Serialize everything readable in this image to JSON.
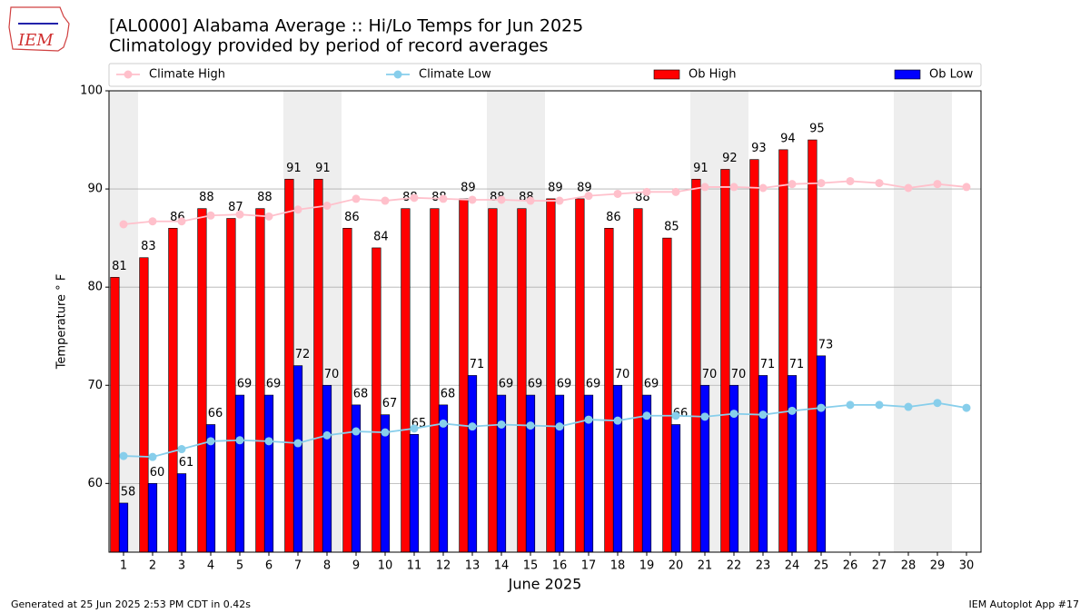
{
  "logo_text": "IEM",
  "footer_left": "Generated at 25 Jun 2025 2:53 PM CDT in 0.42s",
  "footer_right": "IEM Autoplot App #17",
  "chart_data": {
    "type": "bar",
    "title": "[AL0000] Alabama Average :: Hi/Lo Temps for Jun 2025",
    "subtitle": "Climatology provided by period of record averages",
    "x_label": "June 2025",
    "y_label": "Temperature ° F",
    "x": [
      1,
      2,
      3,
      4,
      5,
      6,
      7,
      8,
      9,
      10,
      11,
      12,
      13,
      14,
      15,
      16,
      17,
      18,
      19,
      20,
      21,
      22,
      23,
      24,
      25,
      26,
      27,
      28,
      29,
      30
    ],
    "xlim": [
      0.5,
      30.5
    ],
    "xticks": [
      1,
      2,
      3,
      4,
      5,
      6,
      7,
      8,
      9,
      10,
      11,
      12,
      13,
      14,
      15,
      16,
      17,
      18,
      19,
      20,
      21,
      22,
      23,
      24,
      25,
      26,
      27,
      28,
      29,
      30
    ],
    "ylim": [
      53,
      100
    ],
    "yticks": [
      60,
      70,
      80,
      90,
      100
    ],
    "grid": true,
    "highlight_days": [
      1,
      7,
      8,
      14,
      15,
      21,
      22,
      28,
      29
    ],
    "series": [
      {
        "name": "Climate High",
        "type": "line",
        "color": "#ffc0cb",
        "values": [
          86.4,
          86.7,
          86.7,
          87.3,
          87.4,
          87.2,
          87.9,
          88.3,
          89.0,
          88.8,
          89.1,
          89.0,
          88.9,
          88.9,
          88.8,
          88.8,
          89.3,
          89.5,
          89.7,
          89.7,
          90.2,
          90.2,
          90.1,
          90.5,
          90.6,
          90.8,
          90.6,
          90.1,
          90.5,
          90.2
        ]
      },
      {
        "name": "Climate Low",
        "type": "line",
        "color": "#87ceeb",
        "values": [
          62.8,
          62.7,
          63.5,
          64.3,
          64.4,
          64.3,
          64.1,
          64.9,
          65.3,
          65.2,
          65.6,
          66.1,
          65.8,
          66.0,
          65.9,
          65.8,
          66.5,
          66.4,
          66.9,
          66.9,
          66.8,
          67.1,
          67.0,
          67.4,
          67.7,
          68.0,
          68.0,
          67.8,
          68.2,
          67.7
        ]
      },
      {
        "name": "Ob High",
        "type": "bar",
        "color": "#ff0000",
        "values": [
          81,
          83,
          86,
          88,
          87,
          88,
          91,
          91,
          86,
          84,
          88,
          88,
          89,
          88,
          88,
          89,
          89,
          86,
          88,
          85,
          91,
          92,
          93,
          94,
          95,
          null,
          null,
          null,
          null,
          null
        ]
      },
      {
        "name": "Ob Low",
        "type": "bar",
        "color": "#0000ff",
        "values": [
          58,
          60,
          61,
          66,
          69,
          69,
          72,
          70,
          68,
          67,
          65,
          68,
          71,
          69,
          69,
          69,
          69,
          70,
          69,
          66,
          70,
          70,
          71,
          71,
          73,
          null,
          null,
          null,
          null,
          null
        ]
      }
    ]
  }
}
